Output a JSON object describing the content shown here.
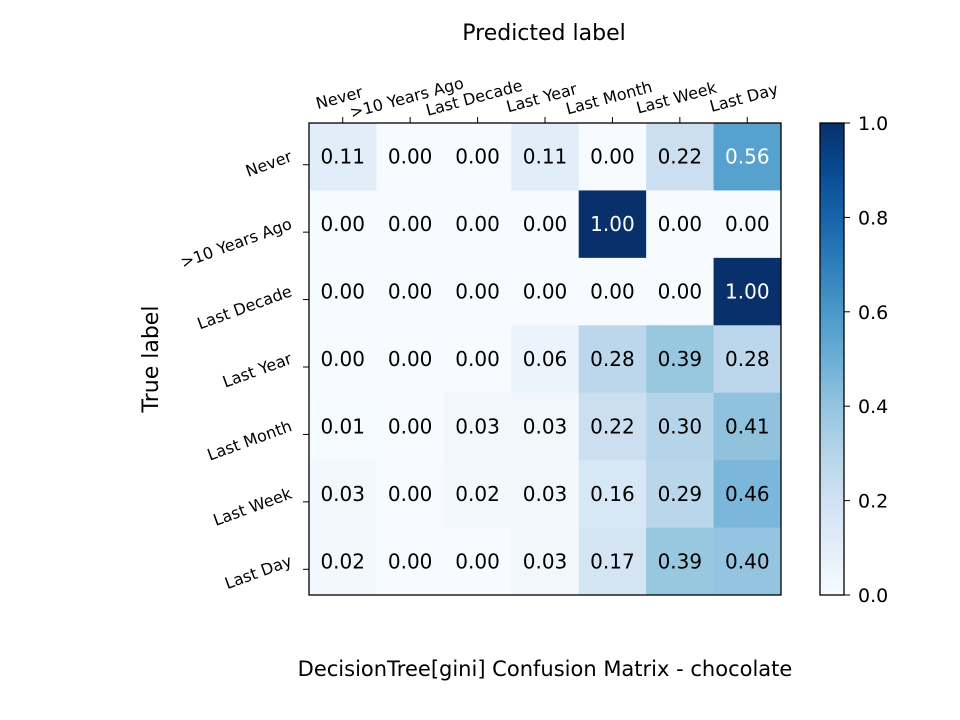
{
  "chart_data": {
    "type": "heatmap",
    "title": "DecisionTree[gini]  Confusion Matrix - chocolate",
    "xlabel": "Predicted label",
    "ylabel": "True label",
    "x_categories": [
      "Never",
      ">10 Years Ago",
      "Last Decade",
      "Last Year",
      "Last Month",
      "Last Week",
      "Last Day"
    ],
    "y_categories": [
      "Never",
      ">10 Years Ago",
      "Last Decade",
      "Last Year",
      "Last Month",
      "Last Week",
      "Last Day"
    ],
    "values": [
      [
        0.11,
        0.0,
        0.0,
        0.11,
        0.0,
        0.22,
        0.56
      ],
      [
        0.0,
        0.0,
        0.0,
        0.0,
        1.0,
        0.0,
        0.0
      ],
      [
        0.0,
        0.0,
        0.0,
        0.0,
        0.0,
        0.0,
        1.0
      ],
      [
        0.0,
        0.0,
        0.0,
        0.06,
        0.28,
        0.39,
        0.28
      ],
      [
        0.01,
        0.0,
        0.03,
        0.03,
        0.22,
        0.3,
        0.41
      ],
      [
        0.03,
        0.0,
        0.02,
        0.03,
        0.16,
        0.29,
        0.46
      ],
      [
        0.02,
        0.0,
        0.0,
        0.03,
        0.17,
        0.39,
        0.4
      ]
    ],
    "colormap": "Blues",
    "colorbar": {
      "range": [
        0.0,
        1.0
      ],
      "ticks": [
        0.0,
        0.2,
        0.4,
        0.6,
        0.8,
        1.0
      ],
      "tick_labels": [
        "0.0",
        "0.2",
        "0.4",
        "0.6",
        "0.8",
        "1.0"
      ]
    },
    "x_ticks_position": "top"
  }
}
